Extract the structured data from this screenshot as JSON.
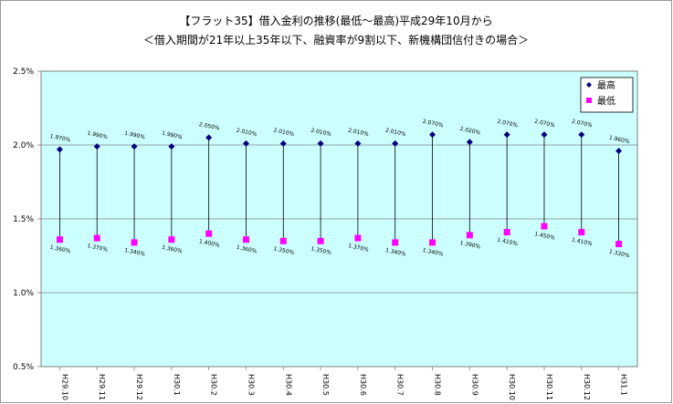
{
  "chart_data": {
    "type": "scatter",
    "title_line1": "【フラット35】借入金利の推移(最低～最高)平成29年10月から",
    "title_line2": "＜借入期間が21年以上35年以下、融資率が9割以下、新機構団信付きの場合＞",
    "categories": [
      "H29.10",
      "H29.11",
      "H29.12",
      "H30.1",
      "H30.2",
      "H30.3",
      "H30.4",
      "H30.5",
      "H30.6",
      "H30.7",
      "H30.8",
      "H30.9",
      "H30.10",
      "H30.11",
      "H30.12",
      "H31.1"
    ],
    "y_ticks": [
      "2.5%",
      "2.0%",
      "1.5%",
      "1.0%",
      "0.5%"
    ],
    "ylim": [
      0.5,
      2.5
    ],
    "grid": "horizontal",
    "legend_position": "top-right",
    "plot_background": "#ccffff",
    "series": [
      {
        "name": "最高",
        "color": "#000080",
        "marker": "diamond",
        "values": [
          1.97,
          1.99,
          1.99,
          1.99,
          2.05,
          2.01,
          2.01,
          2.01,
          2.01,
          2.01,
          2.07,
          2.02,
          2.07,
          2.07,
          2.07,
          1.96
        ],
        "labels": [
          "1.970%",
          "1.990%",
          "1.990%",
          "1.990%",
          "2.050%",
          "2.010%",
          "2.010%",
          "2.010%",
          "2.010%",
          "2.010%",
          "2.070%",
          "2.020%",
          "2.070%",
          "2.070%",
          "2.070%",
          "1.960%"
        ]
      },
      {
        "name": "最低",
        "color": "#ff00ff",
        "marker": "square",
        "values": [
          1.36,
          1.37,
          1.34,
          1.36,
          1.4,
          1.36,
          1.35,
          1.35,
          1.37,
          1.34,
          1.34,
          1.39,
          1.41,
          1.45,
          1.41,
          1.33
        ],
        "labels": [
          "1.360%",
          "1.370%",
          "1.340%",
          "1.360%",
          "1.400%",
          "1.360%",
          "1.350%",
          "1.350%",
          "1.370%",
          "1.340%",
          "1.340%",
          "1.390%",
          "1.410%",
          "1.450%",
          "1.410%",
          "1.330%"
        ]
      }
    ]
  }
}
